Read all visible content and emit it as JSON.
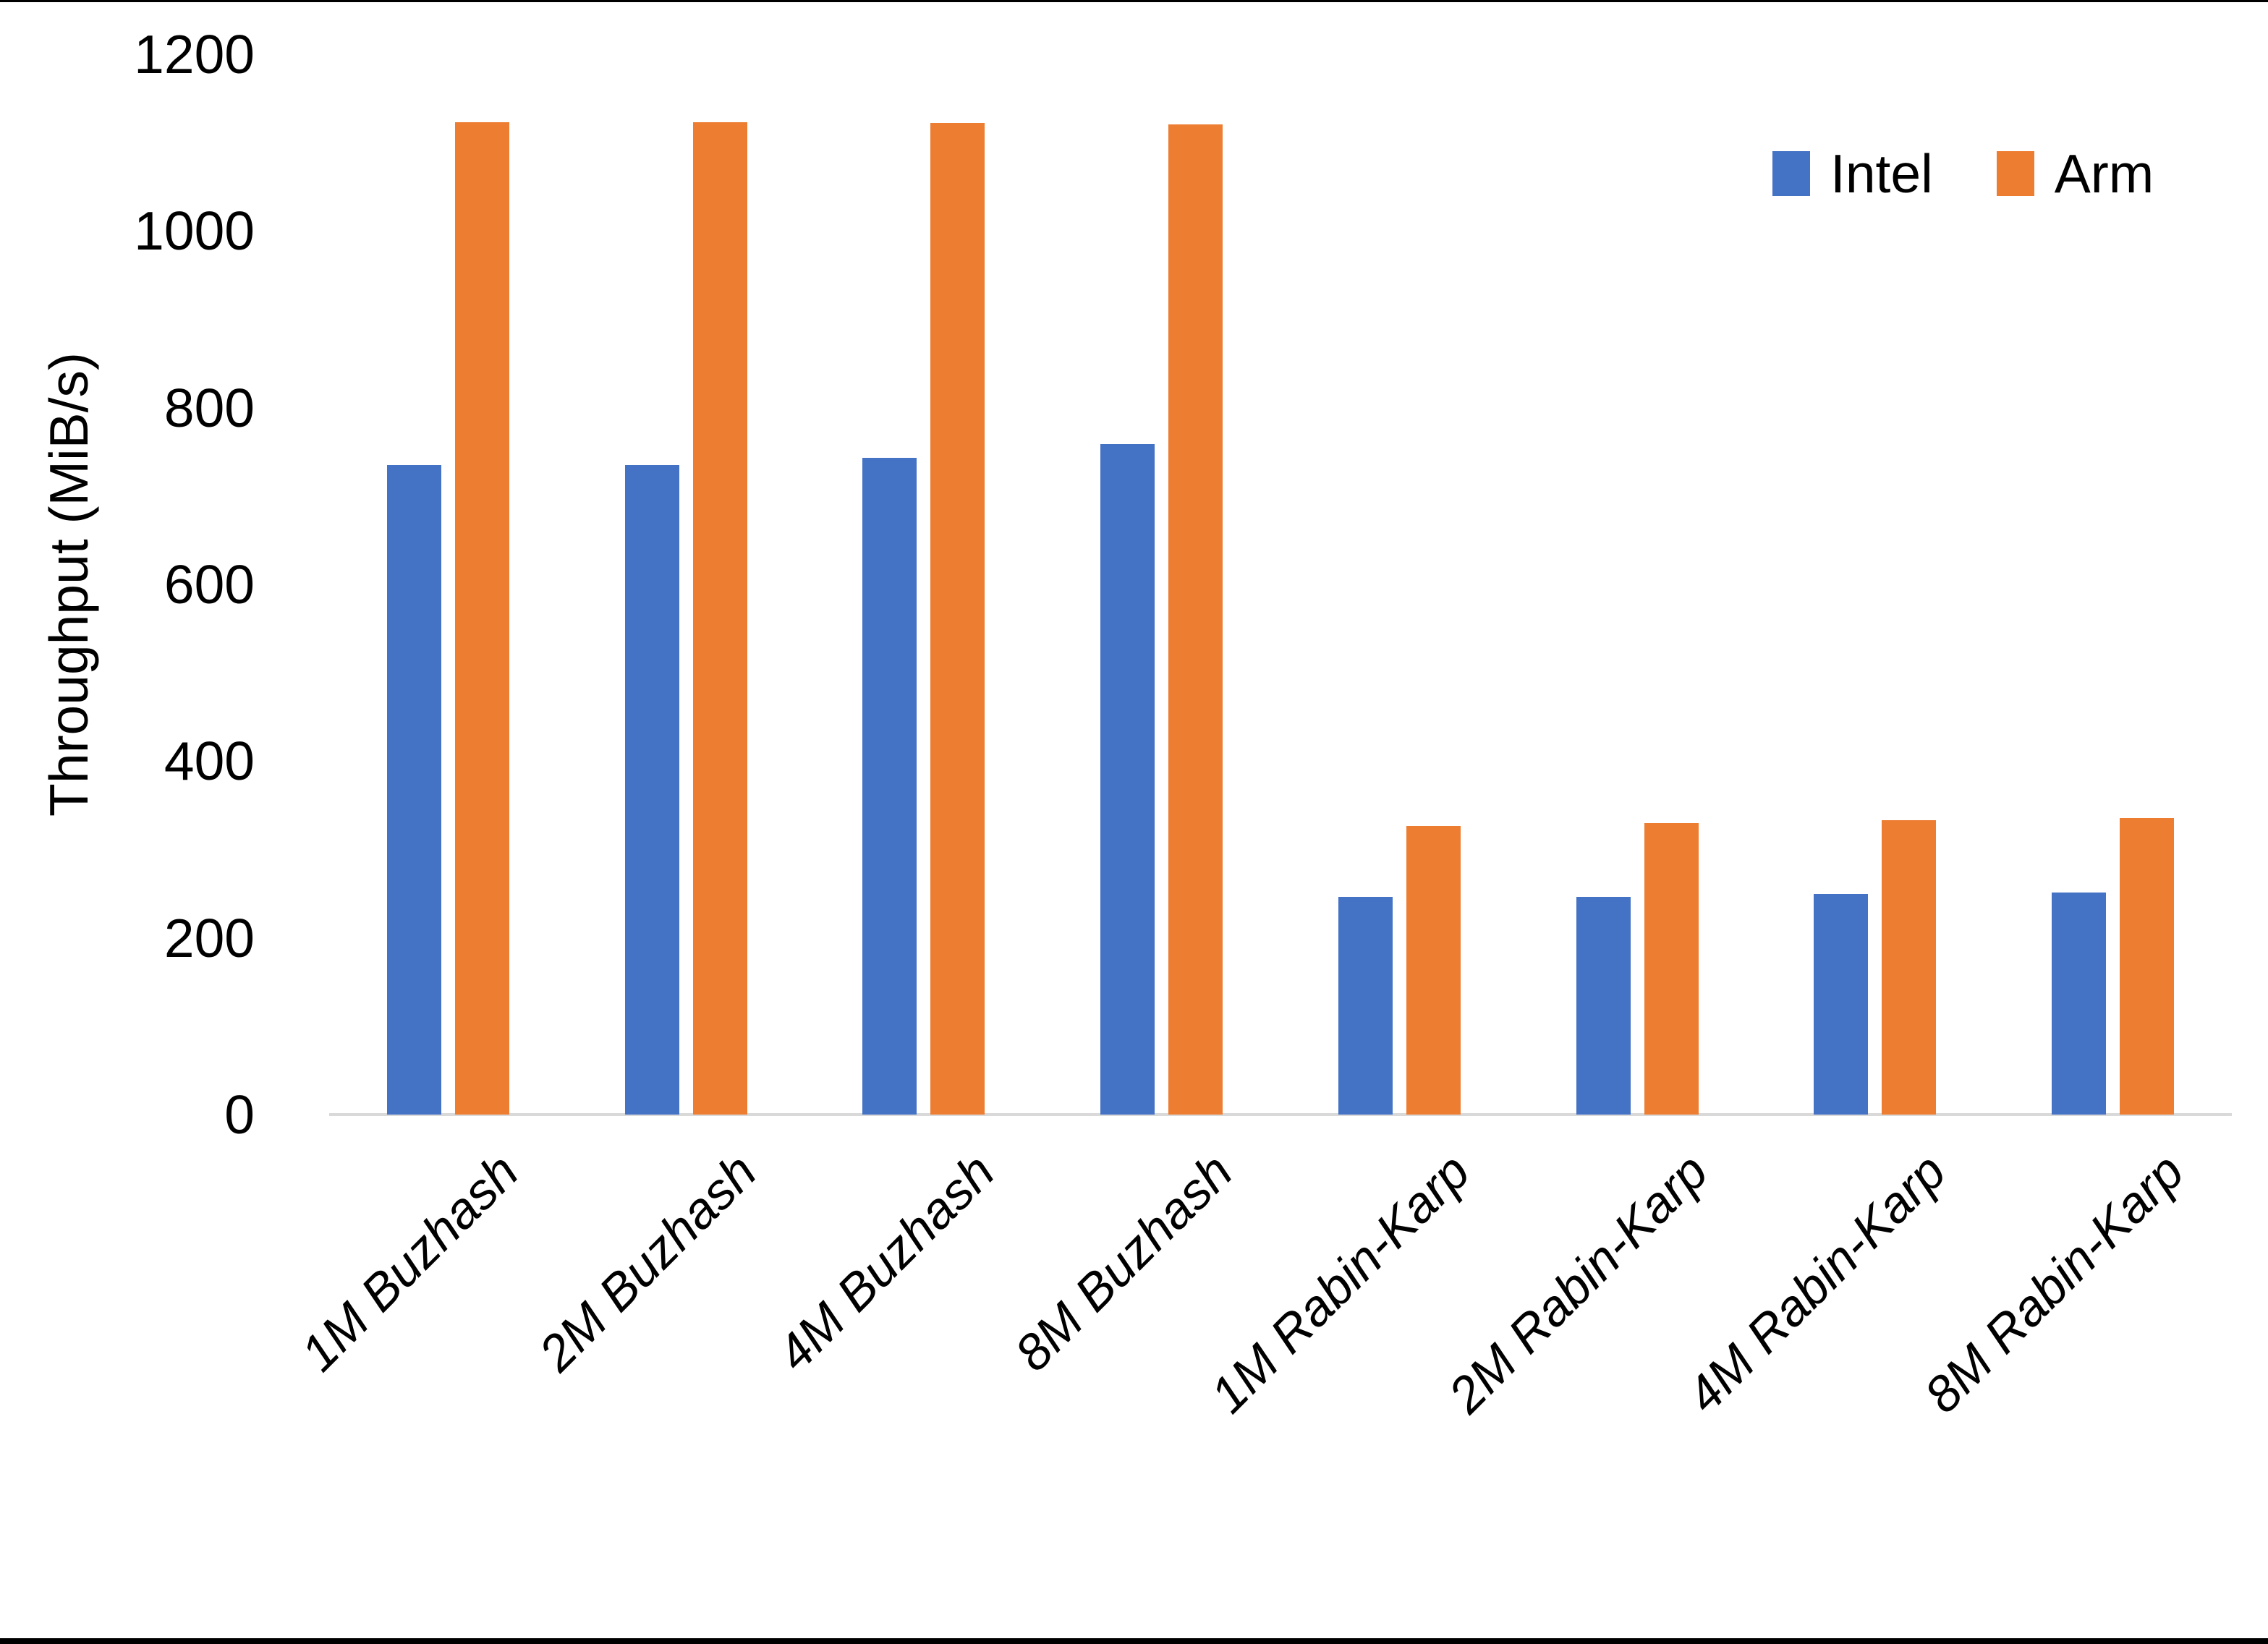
{
  "page": {
    "background": "#ffffff",
    "top_edge_color": "#000000",
    "bottom_edge_color": "#000000"
  },
  "chart_data": {
    "type": "bar",
    "title": "",
    "xlabel": "",
    "ylabel": "Throughput (MiB/s)",
    "ylim": [
      0,
      1200
    ],
    "yticks": [
      0,
      200,
      400,
      600,
      800,
      1000,
      1200
    ],
    "grid": false,
    "legend_position": "top-right",
    "axis_line_color": "#D9D9D9",
    "categories": [
      "1M Buzhash",
      "2M Buzhash",
      "4M Buzhash",
      "8M Buzhash",
      "1M Rabin-Karp",
      "2M Rabin-Karp",
      "4M Rabin-Karp",
      "8M Rabin-Karp"
    ],
    "series": [
      {
        "name": "Intel",
        "color": "#4472C4",
        "values": [
          735,
          735,
          743,
          759,
          246,
          246,
          250,
          251
        ]
      },
      {
        "name": "Arm",
        "color": "#ED7D31",
        "values": [
          1123,
          1123,
          1122,
          1121,
          327,
          330,
          333,
          336
        ]
      }
    ]
  }
}
